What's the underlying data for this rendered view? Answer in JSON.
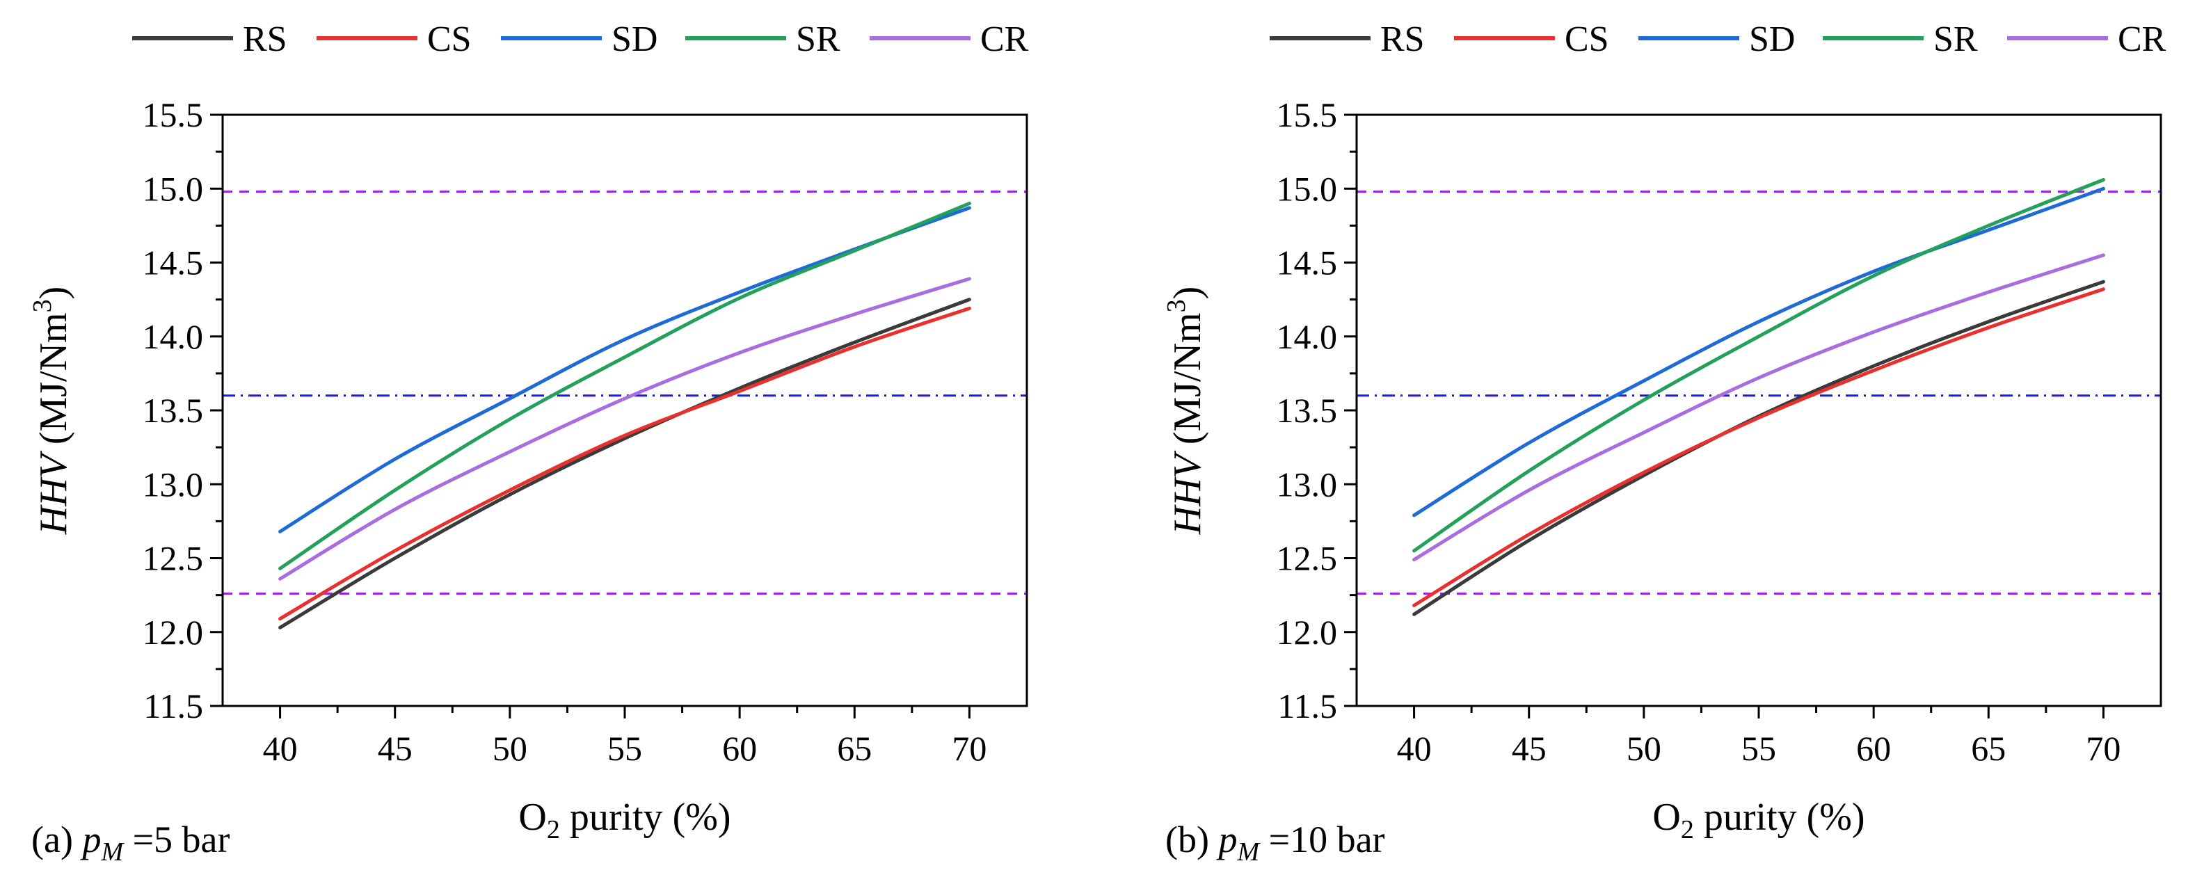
{
  "legend": [
    {
      "name": "RS",
      "color": "#3a3a3a"
    },
    {
      "name": "CS",
      "color": "#e8312f"
    },
    {
      "name": "SD",
      "color": "#1f6bd6"
    },
    {
      "name": "SR",
      "color": "#23a05a"
    },
    {
      "name": "CR",
      "color": "#a86ee0"
    }
  ],
  "chart_data": [
    {
      "type": "line",
      "panel_label": {
        "prefix": "(a)",
        "var": "p",
        "sub": "M",
        "suffix": "=5 bar"
      },
      "xlabel": {
        "pre": "O",
        "sub": "2",
        "post": " purity (%)"
      },
      "ylabel": {
        "var": "HHV",
        "pre": " (MJ/Nm",
        "sup": "3",
        "post": ")"
      },
      "xlim": [
        37.5,
        72.5
      ],
      "ylim": [
        11.5,
        15.5
      ],
      "xticks": [
        40,
        45,
        50,
        55,
        60,
        65,
        70
      ],
      "yticks": [
        11.5,
        12.0,
        12.5,
        13.0,
        13.5,
        14.0,
        14.5,
        15.0,
        15.5
      ],
      "xtick_labels": [
        "40",
        "45",
        "50",
        "55",
        "60",
        "65",
        "70"
      ],
      "ytick_labels": [
        "11.5",
        "12.0",
        "12.5",
        "13.0",
        "13.5",
        "14.0",
        "14.5",
        "15.0",
        "15.5"
      ],
      "x": [
        40,
        45,
        50,
        55,
        60,
        65,
        70
      ],
      "series": [
        {
          "name": "RS",
          "color": "#3a3a3a",
          "values": [
            12.03,
            12.5,
            12.93,
            13.31,
            13.65,
            13.96,
            14.25
          ]
        },
        {
          "name": "CS",
          "color": "#e8312f",
          "values": [
            12.09,
            12.55,
            12.96,
            13.33,
            13.63,
            13.93,
            14.19
          ]
        },
        {
          "name": "SD",
          "color": "#1f6bd6",
          "values": [
            12.68,
            13.17,
            13.58,
            13.98,
            14.3,
            14.59,
            14.87
          ]
        },
        {
          "name": "SR",
          "color": "#23a05a",
          "values": [
            12.43,
            12.96,
            13.44,
            13.86,
            14.26,
            14.58,
            14.9
          ]
        },
        {
          "name": "CR",
          "color": "#a86ee0",
          "values": [
            12.36,
            12.83,
            13.22,
            13.58,
            13.89,
            14.15,
            14.39
          ]
        }
      ],
      "reference_lines": [
        {
          "y": 14.98,
          "style": "dash",
          "color": "#a020f0"
        },
        {
          "y": 13.6,
          "style": "dashdot",
          "color": "#1a1ae6"
        },
        {
          "y": 12.26,
          "style": "dash",
          "color": "#a020f0"
        }
      ]
    },
    {
      "type": "line",
      "panel_label": {
        "prefix": "(b)",
        "var": "p",
        "sub": "M",
        "suffix": "=10 bar"
      },
      "xlabel": {
        "pre": "O",
        "sub": "2",
        "post": " purity (%)"
      },
      "ylabel": {
        "var": "HHV",
        "pre": " (MJ/Nm",
        "sup": "3",
        "post": ")"
      },
      "xlim": [
        37.5,
        72.5
      ],
      "ylim": [
        11.5,
        15.5
      ],
      "xticks": [
        40,
        45,
        50,
        55,
        60,
        65,
        70
      ],
      "yticks": [
        11.5,
        12.0,
        12.5,
        13.0,
        13.5,
        14.0,
        14.5,
        15.0,
        15.5
      ],
      "xtick_labels": [
        "40",
        "45",
        "50",
        "55",
        "60",
        "65",
        "70"
      ],
      "ytick_labels": [
        "11.5",
        "12.0",
        "12.5",
        "13.0",
        "13.5",
        "14.0",
        "14.5",
        "15.0",
        "15.5"
      ],
      "x": [
        40,
        45,
        50,
        55,
        60,
        65,
        70
      ],
      "series": [
        {
          "name": "RS",
          "color": "#3a3a3a",
          "values": [
            12.12,
            12.62,
            13.06,
            13.46,
            13.8,
            14.1,
            14.37
          ]
        },
        {
          "name": "CS",
          "color": "#e8312f",
          "values": [
            12.18,
            12.66,
            13.08,
            13.45,
            13.77,
            14.06,
            14.32
          ]
        },
        {
          "name": "SD",
          "color": "#1f6bd6",
          "values": [
            12.79,
            13.28,
            13.7,
            14.1,
            14.44,
            14.72,
            15.0
          ]
        },
        {
          "name": "SR",
          "color": "#23a05a",
          "values": [
            12.55,
            13.09,
            13.57,
            14.0,
            14.41,
            14.75,
            15.06
          ]
        },
        {
          "name": "CR",
          "color": "#a86ee0",
          "values": [
            12.49,
            12.96,
            13.35,
            13.72,
            14.03,
            14.3,
            14.55
          ]
        }
      ],
      "reference_lines": [
        {
          "y": 14.98,
          "style": "dash",
          "color": "#a020f0"
        },
        {
          "y": 13.6,
          "style": "dashdot",
          "color": "#1a1ae6"
        },
        {
          "y": 12.26,
          "style": "dash",
          "color": "#a020f0"
        }
      ]
    }
  ]
}
